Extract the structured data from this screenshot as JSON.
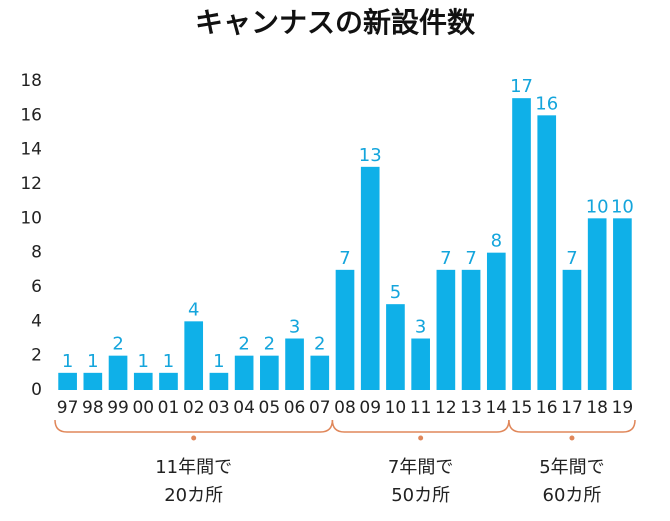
{
  "chart_data": {
    "type": "bar",
    "title": "キャンナスの新設件数",
    "categories": [
      "97",
      "98",
      "99",
      "00",
      "01",
      "02",
      "03",
      "04",
      "05",
      "06",
      "07",
      "08",
      "09",
      "10",
      "11",
      "12",
      "13",
      "14",
      "15",
      "16",
      "17",
      "18",
      "19"
    ],
    "values": [
      1,
      1,
      2,
      1,
      1,
      4,
      1,
      2,
      2,
      3,
      2,
      7,
      13,
      5,
      3,
      7,
      7,
      8,
      17,
      16,
      7,
      10,
      10
    ],
    "color": "#0fb0e8",
    "ylim": [
      0,
      18
    ],
    "yticks": [
      0,
      2,
      4,
      6,
      8,
      10,
      12,
      14,
      16,
      18
    ],
    "grid": false,
    "annotations": [
      [
        "11年間で",
        "20カ所"
      ],
      [
        "7年間で",
        "50カ所"
      ],
      [
        "5年間で",
        "60カ所"
      ]
    ],
    "bracket_color": "#e0875a"
  }
}
